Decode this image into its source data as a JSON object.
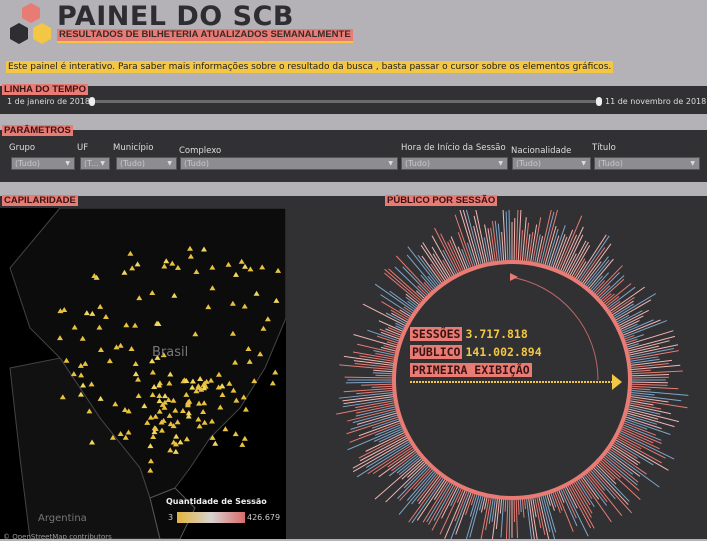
{
  "header": {
    "title": "PAINEL DO SCB",
    "subtitle": "RESULTADOS DE BILHETERIA ATUALIZADOS SEMANALMENTE"
  },
  "notice": "Este painel é interativo. Para saber mais informações sobre o resultado da busca , basta passar o cursor sobre os elementos gráficos.",
  "timeline": {
    "label": "LINHA DO TEMPO",
    "start": "1 de janeiro de 2018",
    "end": "11 de novembro de 2018"
  },
  "params": {
    "label": "PARÂMETROS",
    "filters": [
      {
        "label": "Grupo",
        "value": "(Tudo)"
      },
      {
        "label": "UF",
        "value": "(T..."
      },
      {
        "label": "Município",
        "value": "(Tudo)"
      },
      {
        "label": "Complexo",
        "value": "(Tudo)"
      },
      {
        "label": "Hora de Início da Sessão",
        "value": "(Tudo)"
      },
      {
        "label": "Nacionalidade",
        "value": "(Tudo)"
      },
      {
        "label": "Título",
        "value": "(Tudo)"
      }
    ]
  },
  "capilaridade": {
    "label": "CAPILARIDADE",
    "country_brasil": "Brasil",
    "country_argentina": "Argentina",
    "attribution": "© OpenStreetMap contributors",
    "legend": {
      "title": "Quantidade de Sessão",
      "min": "3",
      "max": "426.679",
      "colors": [
        "#e2b43d",
        "#d7d3d0",
        "#d96b6b"
      ]
    }
  },
  "publico": {
    "label": "PÚBLICO POR SESSÃO",
    "sessoes_label": "SESSÕES",
    "sessoes_value": "3.717.818",
    "publico_label": "PÚBLICO",
    "publico_value": "141.002.894",
    "primeira_label": "PRIMEIRA EXIBIÇÃO"
  },
  "colors": {
    "accent_red": "#e87b73",
    "accent_yellow": "#f3c644",
    "dark": "#313033",
    "blue": "#7fa6c9"
  }
}
